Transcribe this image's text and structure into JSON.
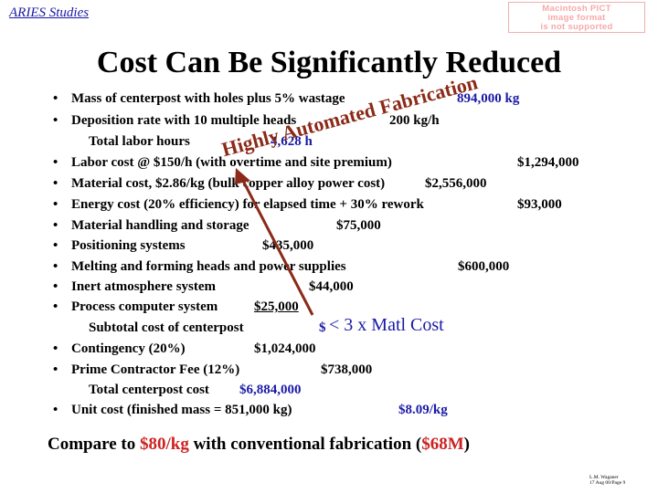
{
  "header": {
    "label": "ARIES Studies"
  },
  "pict_notice": {
    "line1": "Macintosh PICT",
    "line2": "image format",
    "line3": "is not supported"
  },
  "title": "Cost Can Be Significantly Reduced",
  "rows": {
    "r1_label": "Mass of centerpost with holes plus 5% wastage",
    "r1_value": "894,000 kg",
    "r2_label": "Deposition rate with 10 multiple heads",
    "r2_value": "200 kg/h",
    "r3_label": "Total labor hours",
    "r3_value": "4,628 h",
    "r4_label": "Labor cost @ $150/h (with overtime and site premium)",
    "r4_value": "$1,294,000",
    "r5_label": "Material cost, $2.86/kg (bulk copper alloy power cost)",
    "r5_value": "$2,556,000",
    "r6_label": "Energy cost (20% efficiency) for elapsed time + 30% rework",
    "r6_value": "$93,000",
    "r7_label": "Material handling and storage",
    "r7_value": "$75,000",
    "r8_label": "Positioning systems",
    "r8_value": "$435,000",
    "r9_label": "Melting and forming heads and power supplies",
    "r9_value": "$600,000",
    "r10_label": "Inert atmosphere system",
    "r10_value": "$44,000",
    "r11_label": "Process computer system",
    "r11_value": "$25,000",
    "r12_label": "Subtotal cost of centerpost",
    "r12_value": "$",
    "r13_label": "Contingency (20%)",
    "r13_value": "$1,024,000",
    "r14_label": "Prime Contractor Fee (12%)",
    "r14_value": "$738,000",
    "r15_label": "Total centerpost cost",
    "r15_value": "$6,884,000",
    "r16_label": "Unit cost (finished mass = 851,000 kg)",
    "r16_value_a": "$8.",
    "r16_value_b": "09",
    "r16_value_c": "/kg"
  },
  "overlay": {
    "diagonal_text": "Highly Automated Fabrication",
    "callout": "< 3 x Matl Cost"
  },
  "footer": {
    "part1": "Compare to ",
    "part2": "$80/kg",
    "part3": " with conventional fabrication (",
    "part4": "$68M",
    "part5": ")"
  },
  "signature": {
    "line1": "L.M. Waganer",
    "line2": "17 Aug 00/Page 9"
  },
  "colors": {
    "accent_blue": "#1a1aa6",
    "accent_red": "#cc2222",
    "arrow": "#8b2a18",
    "overlay_text": "#8b2a18"
  }
}
